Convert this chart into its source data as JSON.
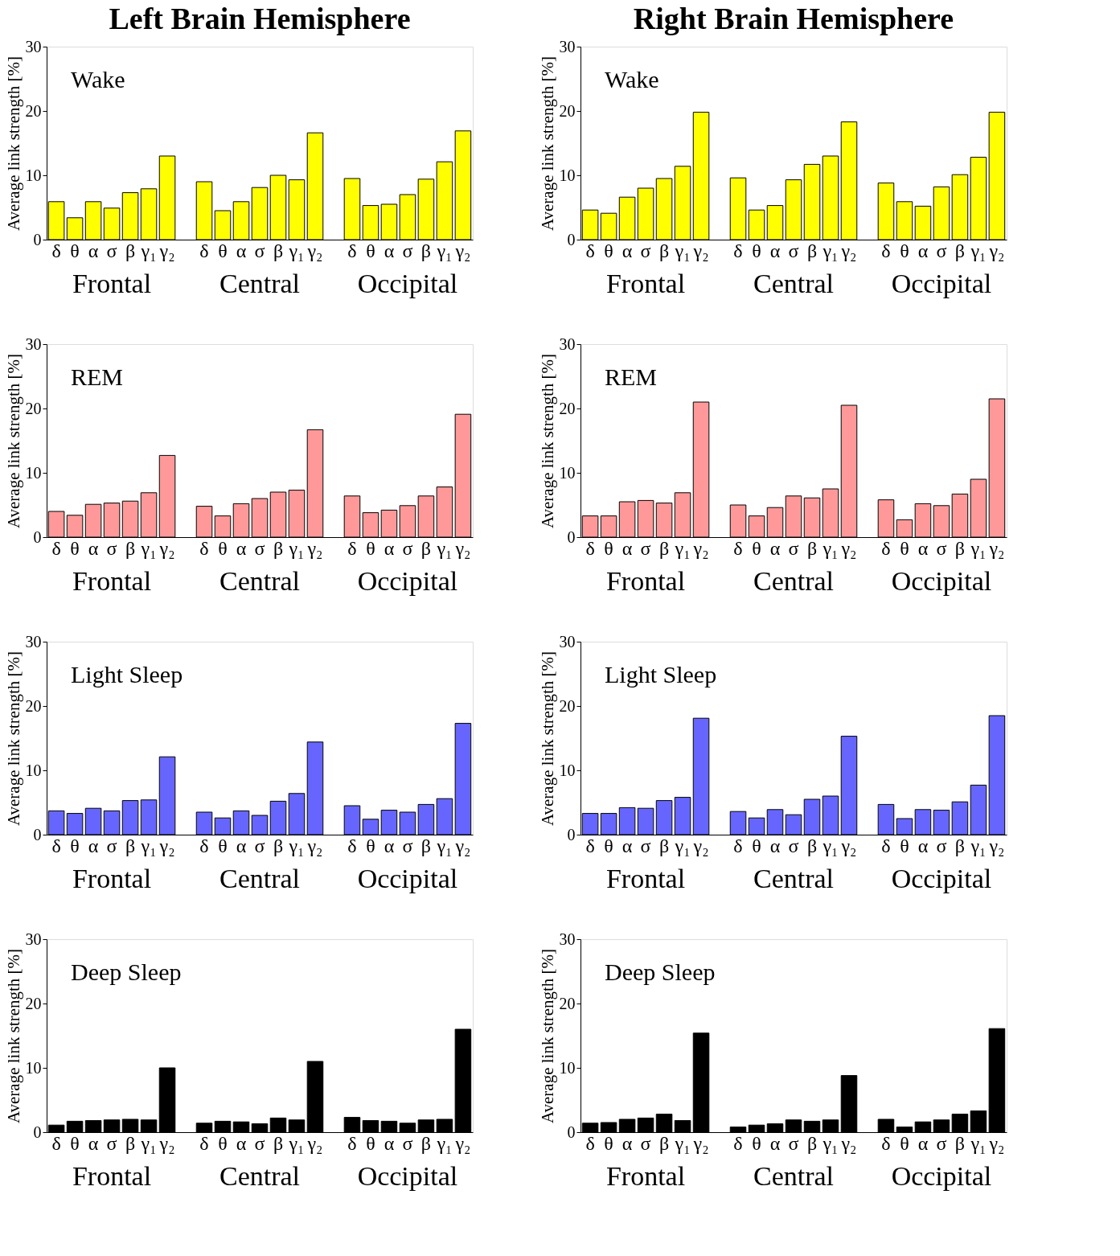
{
  "chart_data": [
    {
      "type": "bar",
      "title": "Left Brain Hemisphere",
      "subtitle": "Wake",
      "ylabel": "Average link strength [%]",
      "categories": [
        "δ",
        "θ",
        "α",
        "σ",
        "β",
        "γ₁",
        "γ₂",
        "δ",
        "θ",
        "α",
        "σ",
        "β",
        "γ₁",
        "γ₂",
        "δ",
        "θ",
        "α",
        "σ",
        "β",
        "γ₁",
        "γ₂"
      ],
      "annotations": [
        "Frontal",
        "Central",
        "Occipital"
      ],
      "ylim": [
        0,
        30
      ],
      "yticks": [
        0,
        10,
        20,
        30
      ],
      "grid": false,
      "series": [
        {
          "color": "#ffff00",
          "values": [
            5.9,
            3.4,
            5.9,
            4.9,
            7.3,
            7.9,
            13.0,
            9.0,
            4.5,
            5.9,
            8.1,
            10.0,
            9.3,
            16.6,
            9.5,
            5.3,
            5.5,
            7.0,
            9.4,
            12.1,
            16.9
          ]
        }
      ]
    },
    {
      "type": "bar",
      "title": "Right Brain Hemisphere",
      "subtitle": "Wake",
      "ylabel": "Average link strength [%]",
      "categories": [
        "δ",
        "θ",
        "α",
        "σ",
        "β",
        "γ₁",
        "γ₂",
        "δ",
        "θ",
        "α",
        "σ",
        "β",
        "γ₁",
        "γ₂",
        "δ",
        "θ",
        "α",
        "σ",
        "β",
        "γ₁",
        "γ₂"
      ],
      "annotations": [
        "Frontal",
        "Central",
        "Occipital"
      ],
      "ylim": [
        0,
        30
      ],
      "yticks": [
        0,
        10,
        20,
        30
      ],
      "grid": false,
      "series": [
        {
          "color": "#ffff00",
          "values": [
            4.6,
            4.1,
            6.6,
            8.0,
            9.5,
            11.4,
            19.8,
            9.6,
            4.6,
            5.3,
            9.3,
            11.7,
            13.0,
            18.3,
            8.8,
            5.9,
            5.2,
            8.2,
            10.1,
            12.8,
            19.8
          ]
        }
      ]
    },
    {
      "type": "bar",
      "subtitle": "REM",
      "ylabel": "Average link strength [%]",
      "categories": [
        "δ",
        "θ",
        "α",
        "σ",
        "β",
        "γ₁",
        "γ₂",
        "δ",
        "θ",
        "α",
        "σ",
        "β",
        "γ₁",
        "γ₂",
        "δ",
        "θ",
        "α",
        "σ",
        "β",
        "γ₁",
        "γ₂"
      ],
      "annotations": [
        "Frontal",
        "Central",
        "Occipital"
      ],
      "ylim": [
        0,
        30
      ],
      "yticks": [
        0,
        10,
        20,
        30
      ],
      "grid": false,
      "series": [
        {
          "color": "#ff9999",
          "values": [
            4.0,
            3.4,
            5.1,
            5.3,
            5.6,
            6.9,
            12.7,
            4.8,
            3.3,
            5.2,
            6.0,
            7.0,
            7.3,
            16.7,
            6.4,
            3.8,
            4.2,
            4.9,
            6.4,
            7.8,
            19.1
          ]
        }
      ]
    },
    {
      "type": "bar",
      "subtitle": "REM",
      "ylabel": "Average link strength [%]",
      "categories": [
        "δ",
        "θ",
        "α",
        "σ",
        "β",
        "γ₁",
        "γ₂",
        "δ",
        "θ",
        "α",
        "σ",
        "β",
        "γ₁",
        "γ₂",
        "δ",
        "θ",
        "α",
        "σ",
        "β",
        "γ₁",
        "γ₂"
      ],
      "annotations": [
        "Frontal",
        "Central",
        "Occipital"
      ],
      "ylim": [
        0,
        30
      ],
      "yticks": [
        0,
        10,
        20,
        30
      ],
      "grid": false,
      "series": [
        {
          "color": "#ff9999",
          "values": [
            3.3,
            3.3,
            5.5,
            5.7,
            5.3,
            6.9,
            21.0,
            5.0,
            3.3,
            4.6,
            6.4,
            6.1,
            7.5,
            20.5,
            5.8,
            2.7,
            5.2,
            4.9,
            6.7,
            9.0,
            21.5
          ]
        }
      ]
    },
    {
      "type": "bar",
      "subtitle": "Light Sleep",
      "ylabel": "Average link strength [%]",
      "categories": [
        "δ",
        "θ",
        "α",
        "σ",
        "β",
        "γ₁",
        "γ₂",
        "δ",
        "θ",
        "α",
        "σ",
        "β",
        "γ₁",
        "γ₂",
        "δ",
        "θ",
        "α",
        "σ",
        "β",
        "γ₁",
        "γ₂"
      ],
      "annotations": [
        "Frontal",
        "Central",
        "Occipital"
      ],
      "ylim": [
        0,
        30
      ],
      "yticks": [
        0,
        10,
        20,
        30
      ],
      "grid": false,
      "series": [
        {
          "color": "#6666ff",
          "values": [
            3.7,
            3.3,
            4.1,
            3.7,
            5.3,
            5.4,
            12.1,
            3.5,
            2.6,
            3.7,
            3.0,
            5.2,
            6.4,
            14.4,
            4.5,
            2.4,
            3.8,
            3.5,
            4.7,
            5.6,
            17.3
          ]
        }
      ]
    },
    {
      "type": "bar",
      "subtitle": "Light Sleep",
      "ylabel": "Average link strength [%]",
      "categories": [
        "δ",
        "θ",
        "α",
        "σ",
        "β",
        "γ₁",
        "γ₂",
        "δ",
        "θ",
        "α",
        "σ",
        "β",
        "γ₁",
        "γ₂",
        "δ",
        "θ",
        "α",
        "σ",
        "β",
        "γ₁",
        "γ₂"
      ],
      "annotations": [
        "Frontal",
        "Central",
        "Occipital"
      ],
      "ylim": [
        0,
        30
      ],
      "yticks": [
        0,
        10,
        20,
        30
      ],
      "grid": false,
      "series": [
        {
          "color": "#6666ff",
          "values": [
            3.3,
            3.3,
            4.2,
            4.1,
            5.3,
            5.8,
            18.1,
            3.6,
            2.6,
            3.9,
            3.1,
            5.5,
            6.0,
            15.3,
            4.7,
            2.5,
            3.9,
            3.8,
            5.1,
            7.7,
            18.5
          ]
        }
      ]
    },
    {
      "type": "bar",
      "subtitle": "Deep Sleep",
      "ylabel": "Average link strength [%]",
      "categories": [
        "δ",
        "θ",
        "α",
        "σ",
        "β",
        "γ₁",
        "γ₂",
        "δ",
        "θ",
        "α",
        "σ",
        "β",
        "γ₁",
        "γ₂",
        "δ",
        "θ",
        "α",
        "σ",
        "β",
        "γ₁",
        "γ₂"
      ],
      "annotations": [
        "Frontal",
        "Central",
        "Occipital"
      ],
      "ylim": [
        0,
        30
      ],
      "yticks": [
        0,
        10,
        20,
        30
      ],
      "grid": false,
      "series": [
        {
          "color": "#000000",
          "values": [
            1.1,
            1.7,
            1.8,
            1.9,
            2.0,
            1.9,
            10.0,
            1.4,
            1.7,
            1.6,
            1.3,
            2.2,
            1.9,
            11.0,
            2.3,
            1.8,
            1.7,
            1.4,
            1.9,
            2.0,
            16.0
          ]
        }
      ]
    },
    {
      "type": "bar",
      "subtitle": "Deep Sleep",
      "ylabel": "Average link strength [%]",
      "categories": [
        "δ",
        "θ",
        "α",
        "σ",
        "β",
        "γ₁",
        "γ₂",
        "δ",
        "θ",
        "α",
        "σ",
        "β",
        "γ₁",
        "γ₂",
        "δ",
        "θ",
        "α",
        "σ",
        "β",
        "γ₁",
        "γ₂"
      ],
      "annotations": [
        "Frontal",
        "Central",
        "Occipital"
      ],
      "ylim": [
        0,
        30
      ],
      "yticks": [
        0,
        10,
        20,
        30
      ],
      "grid": false,
      "series": [
        {
          "color": "#000000",
          "values": [
            1.4,
            1.5,
            2.0,
            2.2,
            2.8,
            1.8,
            15.4,
            0.8,
            1.1,
            1.3,
            1.9,
            1.7,
            1.9,
            8.8,
            2.0,
            0.8,
            1.6,
            1.9,
            2.8,
            3.3,
            16.1
          ]
        }
      ]
    }
  ]
}
